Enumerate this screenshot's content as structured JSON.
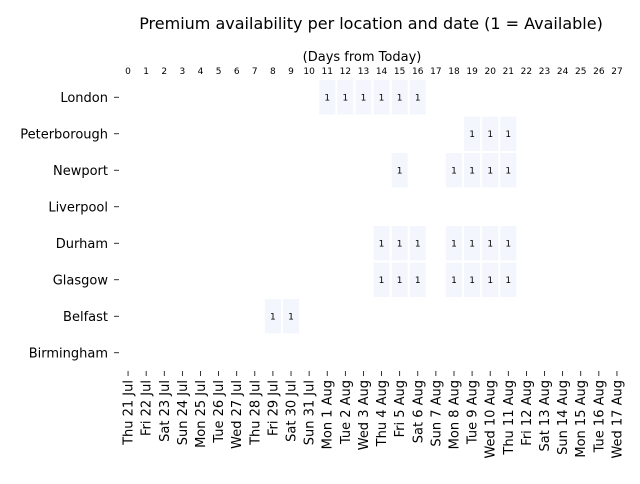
{
  "chart_data": {
    "type": "heatmap",
    "title": "Premium availability per location and date (1 = Available)",
    "top_axis_label": "(Days from Today)",
    "top_ticks": [
      "0",
      "1",
      "2",
      "3",
      "4",
      "5",
      "6",
      "7",
      "8",
      "9",
      "10",
      "11",
      "12",
      "13",
      "14",
      "15",
      "16",
      "17",
      "18",
      "19",
      "20",
      "21",
      "22",
      "23",
      "24",
      "25",
      "26",
      "27"
    ],
    "x_labels": [
      "Thu 21 Jul",
      "Fri 22 Jul",
      "Sat 23 Jul",
      "Sun 24 Jul",
      "Mon 25 Jul",
      "Tue 26 Jul",
      "Wed 27 Jul",
      "Thu 28 Jul",
      "Fri 29 Jul",
      "Sat 30 Jul",
      "Sun 31 Jul",
      "Mon 1 Aug",
      "Tue 2 Aug",
      "Wed 3 Aug",
      "Thu 4 Aug",
      "Fri 5 Aug",
      "Sat 6 Aug",
      "Sun 7 Aug",
      "Mon 8 Aug",
      "Tue 9 Aug",
      "Wed 10 Aug",
      "Thu 11 Aug",
      "Fri 12 Aug",
      "Sat 13 Aug",
      "Sun 14 Aug",
      "Mon 15 Aug",
      "Tue 16 Aug",
      "Wed 17 Aug"
    ],
    "y_labels": [
      "London",
      "Peterborough",
      "Newport",
      "Liverpool",
      "Durham",
      "Glasgow",
      "Belfast",
      "Birmingham"
    ],
    "available": {
      "London": [
        11,
        12,
        13,
        14,
        15,
        16
      ],
      "Peterborough": [
        19,
        20,
        21
      ],
      "Newport": [
        15,
        18,
        19,
        20,
        21
      ],
      "Liverpool": [],
      "Durham": [
        14,
        15,
        16,
        18,
        19,
        20,
        21
      ],
      "Glasgow": [
        14,
        15,
        16,
        18,
        19,
        20,
        21
      ],
      "Belfast": [
        8,
        9
      ],
      "Birmingham": []
    },
    "cell_value_label": "1",
    "cell_color": "#f3f7fd",
    "grid": false,
    "legend": "none"
  }
}
